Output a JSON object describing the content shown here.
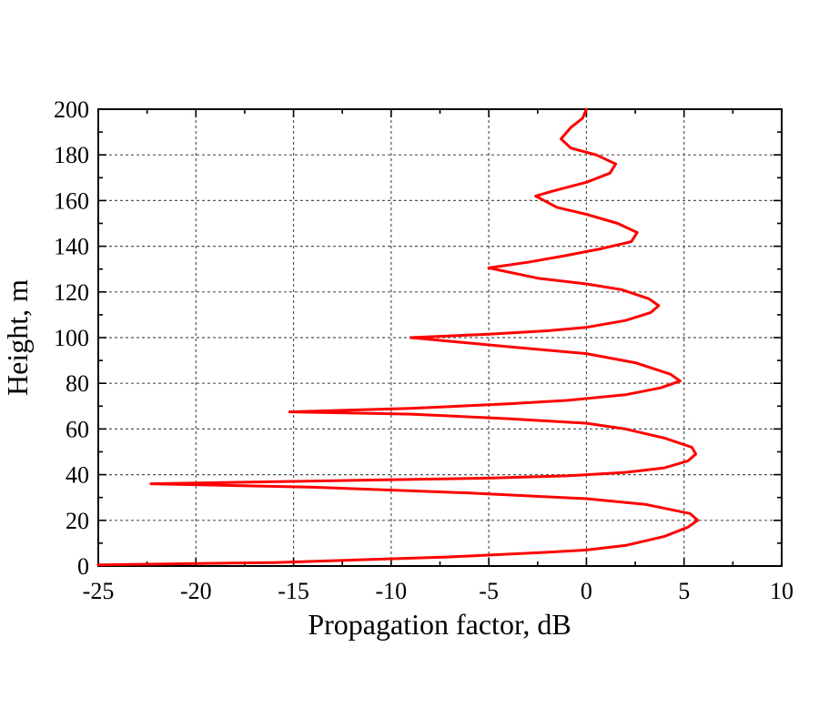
{
  "chart_data": {
    "type": "line",
    "xlabel": "Propagation factor, dB",
    "ylabel": "Height, m",
    "xlim": [
      -25,
      10
    ],
    "ylim": [
      0,
      200
    ],
    "x_ticks": [
      "-25",
      "-20",
      "-15",
      "-10",
      "-5",
      "0",
      "5",
      "10"
    ],
    "y_ticks": [
      "0",
      "20",
      "40",
      "60",
      "80",
      "100",
      "120",
      "140",
      "160",
      "180",
      "200"
    ],
    "grid": true,
    "series": [
      {
        "color": "#ff0000",
        "points": [
          [
            -25,
            0.5
          ],
          [
            -16,
            1.5
          ],
          [
            -7,
            4
          ],
          [
            -2,
            6
          ],
          [
            0,
            7
          ],
          [
            2,
            9
          ],
          [
            4,
            13
          ],
          [
            5.2,
            17
          ],
          [
            5.7,
            20
          ],
          [
            5.3,
            23
          ],
          [
            3,
            27
          ],
          [
            0,
            29.5
          ],
          [
            -6,
            32
          ],
          [
            -14,
            34.5
          ],
          [
            -22.3,
            36
          ],
          [
            -12,
            37.5
          ],
          [
            -5,
            38.5
          ],
          [
            -1,
            39.5
          ],
          [
            2,
            41
          ],
          [
            4,
            43
          ],
          [
            5.2,
            46
          ],
          [
            5.6,
            49
          ],
          [
            5.4,
            52
          ],
          [
            4,
            56
          ],
          [
            2,
            60
          ],
          [
            0,
            62.5
          ],
          [
            -4,
            64.5
          ],
          [
            -9,
            66.5
          ],
          [
            -15.2,
            67.5
          ],
          [
            -9,
            69
          ],
          [
            -4,
            71
          ],
          [
            -1,
            72.5
          ],
          [
            2,
            75
          ],
          [
            3.8,
            78
          ],
          [
            4.8,
            81
          ],
          [
            4.3,
            84
          ],
          [
            2.5,
            89
          ],
          [
            0,
            93
          ],
          [
            -4,
            96
          ],
          [
            -9,
            100
          ],
          [
            -5,
            101.5
          ],
          [
            -2,
            103
          ],
          [
            0,
            104.5
          ],
          [
            2,
            107.5
          ],
          [
            3.3,
            111
          ],
          [
            3.7,
            114
          ],
          [
            3.2,
            117
          ],
          [
            1.8,
            121
          ],
          [
            0,
            123.5
          ],
          [
            -2.5,
            126
          ],
          [
            -5,
            130.5
          ],
          [
            -3,
            133
          ],
          [
            -1,
            136
          ],
          [
            0.8,
            139
          ],
          [
            2.3,
            142
          ],
          [
            2.6,
            146
          ],
          [
            1.6,
            150
          ],
          [
            0,
            154
          ],
          [
            -1.5,
            157
          ],
          [
            -2.6,
            162
          ],
          [
            -1.8,
            164
          ],
          [
            0,
            168
          ],
          [
            1.2,
            172
          ],
          [
            1.5,
            176
          ],
          [
            0.5,
            180
          ],
          [
            -0.8,
            183
          ],
          [
            -1.3,
            187
          ],
          [
            -0.8,
            192
          ],
          [
            -0.2,
            196
          ],
          [
            0,
            200
          ]
        ]
      }
    ]
  }
}
